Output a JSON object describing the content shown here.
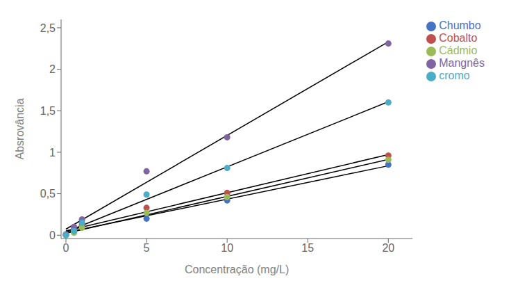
{
  "chart_data": {
    "type": "scatter",
    "xlabel": "Concentração (mg/L)",
    "ylabel": "Absrovância",
    "xlim": [
      -0.3,
      21.5
    ],
    "ylim": [
      -0.04,
      2.6
    ],
    "xticks": [
      0,
      5,
      10,
      15,
      20
    ],
    "yticks": [
      0,
      {
        "value": 0.5,
        "label": "0,5"
      },
      1,
      {
        "value": 1.5,
        "label": "1,5"
      },
      2,
      {
        "value": 2.5,
        "label": "2,5"
      }
    ],
    "grid": false,
    "legend": "right",
    "series": [
      {
        "type": "line",
        "color": "#000000",
        "x": [
          0,
          20
        ],
        "values": [
          0.0330084,
          0.836816
        ]
      },
      {
        "type": "scatter",
        "name": "Chumbo",
        "color": "#4472C4",
        "x": [
          0,
          0.5,
          1,
          5,
          10,
          20
        ],
        "values": [
          0.005,
          0.07,
          0.12,
          0.2,
          0.42,
          0.85
        ]
      },
      {
        "type": "line",
        "color": "#000000",
        "x": [
          0,
          20
        ],
        "values": [
          0.0524867,
          0.971983
        ]
      },
      {
        "type": "scatter",
        "name": "Cobalto",
        "color": "#C0504D",
        "x": [
          0,
          0.5,
          1,
          5,
          10,
          20
        ],
        "values": [
          0.003,
          0.06,
          0.13,
          0.33,
          0.51,
          0.96
        ]
      },
      {
        "type": "line",
        "color": "#000000",
        "x": [
          0,
          20
        ],
        "values": [
          0.0229805,
          0.9129079
        ]
      },
      {
        "type": "scatter",
        "name": "Cádmio",
        "color": "#9BBB59",
        "x": [
          0,
          0.5,
          1,
          5,
          10,
          20
        ],
        "values": [
          0.002,
          0.03,
          0.09,
          0.27,
          0.46,
          0.91
        ]
      },
      {
        "type": "line",
        "color": "#000000",
        "x": [
          0,
          20
        ],
        "values": [
          0.0730941,
          2.3314149
        ]
      },
      {
        "type": "scatter",
        "name": "Mangnês",
        "color": "#8064A2",
        "x": [
          0,
          0.5,
          1,
          5,
          10,
          20
        ],
        "values": [
          0.01,
          0.1,
          0.19,
          0.77,
          1.18,
          2.31
        ]
      },
      {
        "type": "line",
        "color": "#000000",
        "x": [
          0,
          20
        ],
        "values": [
          0.0393987,
          1.6084989
        ]
      },
      {
        "type": "scatter",
        "name": "cromo",
        "color": "#4BACC6",
        "x": [
          0,
          0.5,
          1,
          5,
          10,
          20
        ],
        "values": [
          0.0,
          0.05,
          0.15,
          0.49,
          0.81,
          1.6
        ]
      }
    ]
  }
}
